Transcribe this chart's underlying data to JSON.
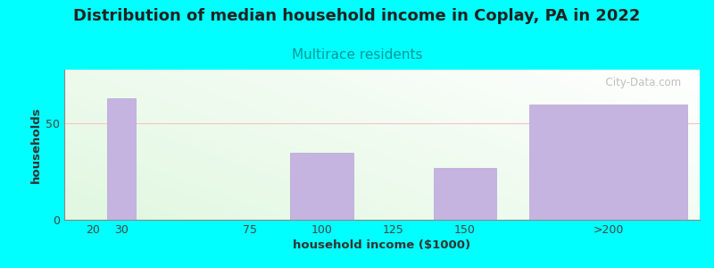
{
  "title": "Distribution of median household income in Coplay, PA in 2022",
  "subtitle": "Multirace residents",
  "xlabel": "household income ($1000)",
  "ylabel": "households",
  "title_fontsize": 13,
  "subtitle_fontsize": 11,
  "label_fontsize": 9.5,
  "tick_fontsize": 9,
  "bg_color": "#00FFFF",
  "bar_color": "#c5b3e0",
  "bar_edge_color": "#b8a5d5",
  "gridline_color": "#ffbbbb",
  "categories": [
    "20",
    "30",
    "75",
    "100",
    "125",
    "150",
    ">200"
  ],
  "positions": [
    20,
    30,
    75,
    100,
    125,
    150,
    200
  ],
  "bar_widths": [
    8,
    10,
    5,
    22,
    5,
    22,
    55
  ],
  "values": [
    0,
    63,
    0,
    35,
    0,
    27,
    60
  ],
  "xlim": [
    10,
    232
  ],
  "ylim": [
    0,
    78
  ],
  "yticks": [
    0,
    50
  ],
  "watermark": "  City-Data.com",
  "watermark_color": "#aaaaaa",
  "subtitle_color": "#009999",
  "title_color": "#222222",
  "xlabel_color": "#333333",
  "ylabel_color": "#333333"
}
